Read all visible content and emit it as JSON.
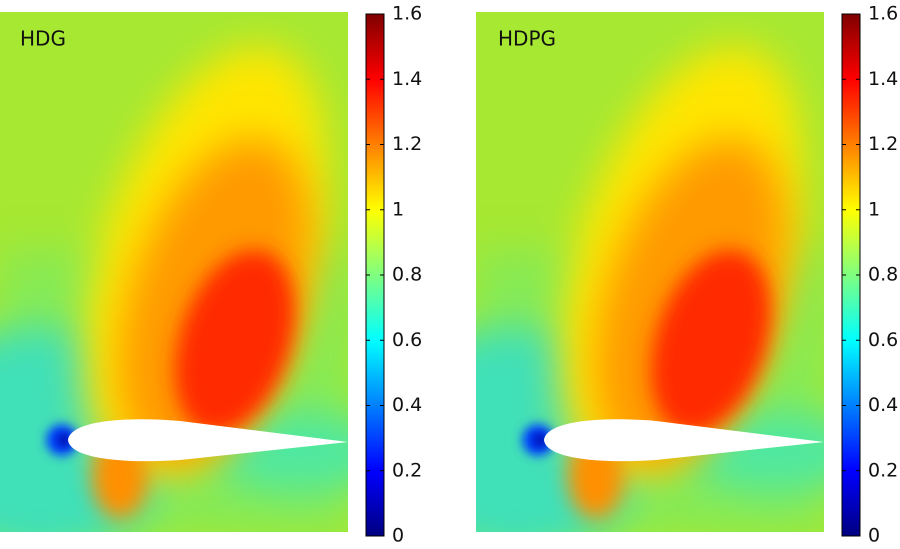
{
  "chart_data": [
    {
      "type": "contour",
      "title": "HDG",
      "colormap": "jet",
      "clim": [
        0,
        1.6
      ],
      "cticks": [
        0,
        0.2,
        0.4,
        0.6,
        0.8,
        1,
        1.2,
        1.4,
        1.6
      ]
    },
    {
      "type": "contour",
      "title": "HDPG",
      "colormap": "jet",
      "clim": [
        0,
        1.6
      ],
      "cticks": [
        0,
        0.2,
        0.4,
        0.6,
        0.8,
        1,
        1.2,
        1.4,
        1.6
      ]
    }
  ]
}
